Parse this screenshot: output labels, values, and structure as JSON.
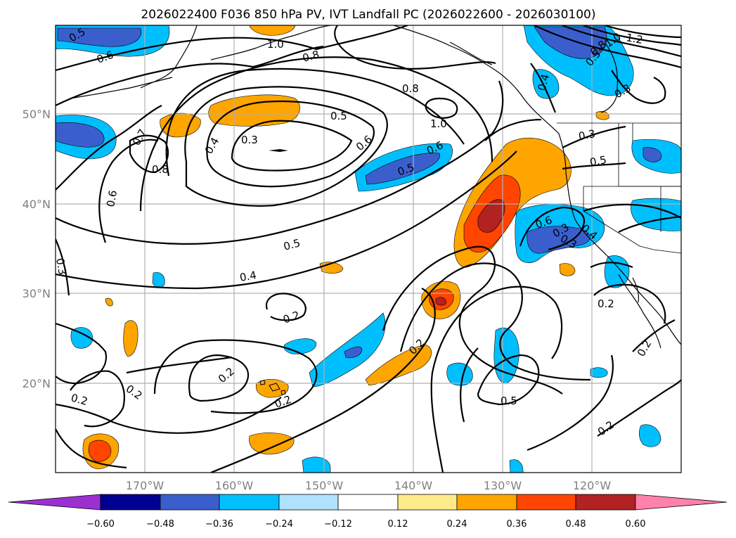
{
  "title": "2026022400 F036 850 hPa PV, IVT Landfall PC (2026022600 - 2026030100)",
  "lat_labels": [
    "50°N",
    "40°N",
    "30°N",
    "20°N"
  ],
  "lon_labels": [
    "170°W",
    "160°W",
    "150°W",
    "140°W",
    "130°W",
    "120°W"
  ],
  "colorbar": {
    "ticks": [
      "−0.60",
      "−0.48",
      "−0.36",
      "−0.24",
      "−0.12",
      "0.12",
      "0.24",
      "0.36",
      "0.48",
      "0.60"
    ],
    "colors": {
      "under": "#9b30d0",
      "neg_060": "#000090",
      "neg_048": "#3a5fcd",
      "neg_036": "#00bfff",
      "neg_024": "#b0e2ff",
      "neutral": "#ffffff",
      "pos_012": "#ffea8a",
      "pos_024": "#ffa500",
      "pos_036": "#ff4500",
      "pos_048": "#b22222",
      "over": "#ff82ab"
    }
  },
  "contour_labels": [
    "0.5",
    "0.6",
    "1.0",
    "0.8",
    "0.8",
    "1.0",
    "1.2",
    "1.0",
    "0.8",
    "0.5",
    "0.4",
    "0.3",
    "0.5",
    "0.3",
    "0.4",
    "0.6",
    "0.6",
    "0.5",
    "0.7",
    "0.8",
    "0.6",
    "0.3",
    "0.5",
    "0.3",
    "0.4",
    "0.3",
    "0.6",
    "0.5",
    "0.4",
    "0.2",
    "0.2",
    "0.2",
    "0.2",
    "0.2",
    "0.2",
    "0.5",
    "0.2",
    "0.2",
    "0.2",
    "0.3"
  ]
}
